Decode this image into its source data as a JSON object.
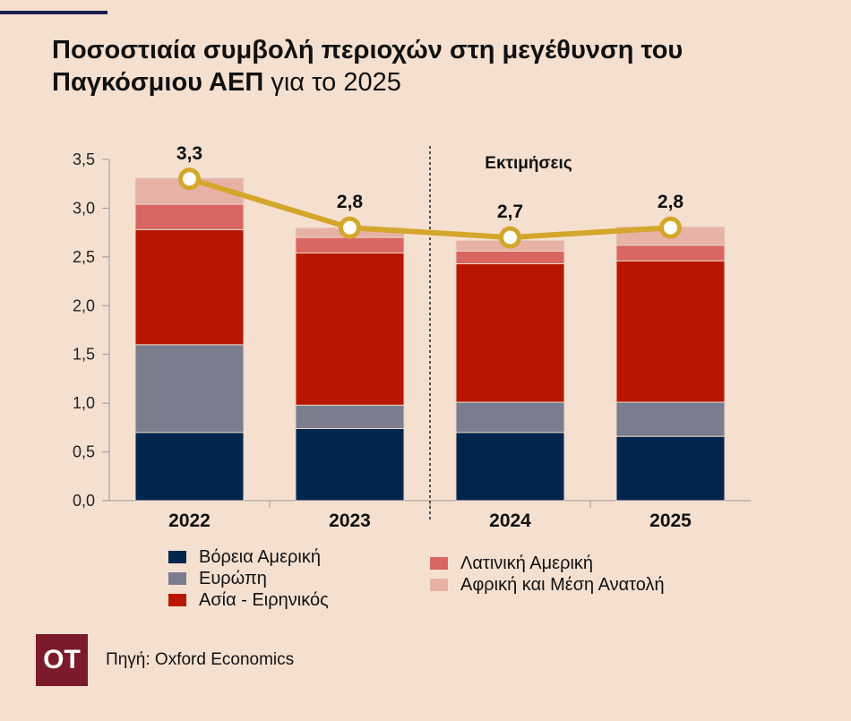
{
  "title": {
    "bold_part": "Ποσοστιαία συμβολή περιοχών στη μεγέθυνση του Παγκόσμιου ΑΕΠ",
    "light_part": " για το 2025"
  },
  "logo_text": "OT",
  "source": "Πηγή: Oxford Economics",
  "chart_data": {
    "type": "bar",
    "stacked": true,
    "categories": [
      "2022",
      "2023",
      "2024",
      "2025"
    ],
    "series": [
      {
        "name": "Βόρεια Αμερική",
        "color": "#00264d",
        "values": [
          0.7,
          0.74,
          0.7,
          0.66
        ]
      },
      {
        "name": "Ευρώπη",
        "color": "#7b7d8f",
        "values": [
          0.9,
          0.24,
          0.31,
          0.35
        ]
      },
      {
        "name": "Ασία - Ειρηνικός",
        "color": "#b81600",
        "values": [
          1.18,
          1.56,
          1.42,
          1.45
        ]
      },
      {
        "name": "Λατινική Αμερική",
        "color": "#d96660",
        "values": [
          0.26,
          0.16,
          0.13,
          0.16
        ]
      },
      {
        "name": "Αφρική και Μέση Ανατολή",
        "color": "#e8b1a6",
        "values": [
          0.27,
          0.1,
          0.11,
          0.19
        ]
      }
    ],
    "total_line": {
      "color": "#d4a62a",
      "values": [
        3.3,
        2.8,
        2.7,
        2.8
      ],
      "labels": [
        "3,3",
        "2,8",
        "2,7",
        "2,8"
      ]
    },
    "yticks": [
      "0,0",
      "0,5",
      "1,0",
      "1,5",
      "2,0",
      "2,5",
      "3,0",
      "3,5"
    ],
    "ylim": [
      0,
      3.5
    ],
    "annotation": "Εκτιμήσεις",
    "estimate_divider_after_category": "2023",
    "grid": false
  }
}
